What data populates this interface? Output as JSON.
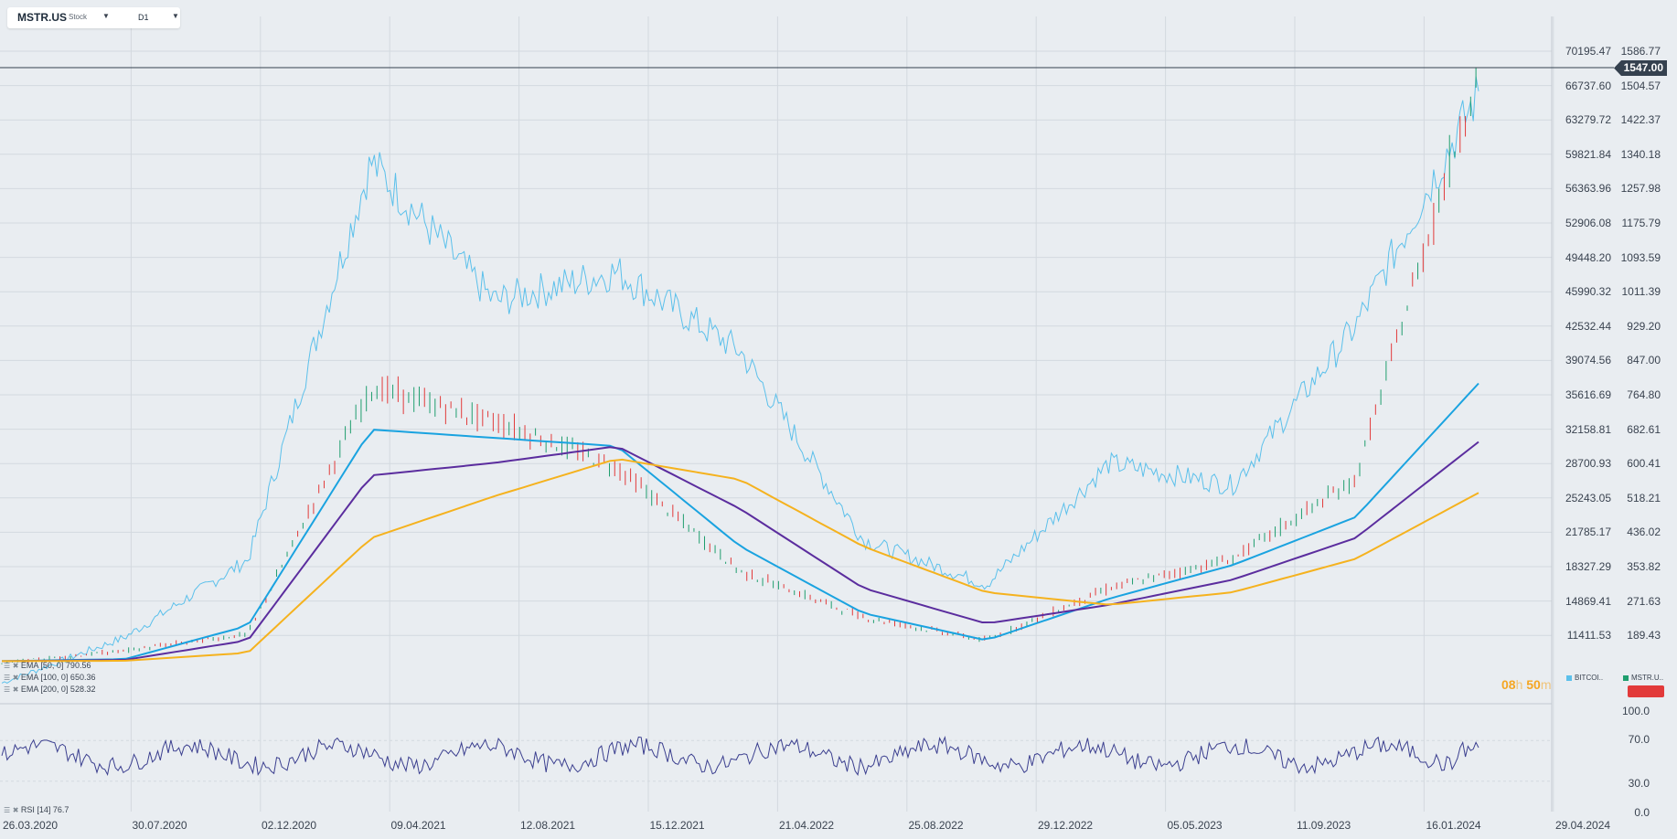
{
  "symbol": {
    "name": "MSTR.US",
    "type": "Stock",
    "timeframe": "D1"
  },
  "price_axis": [
    "1586.77",
    "1504.57",
    "1422.37",
    "1340.18",
    "1257.98",
    "1175.79",
    "1093.59",
    "1011.39",
    "929.20",
    "847.00",
    "764.80",
    "682.61",
    "600.41",
    "518.21",
    "436.02",
    "353.82",
    "271.63",
    "189.43"
  ],
  "btc_axis": [
    "70195.47",
    "66737.60",
    "63279.72",
    "59821.84",
    "56363.96",
    "52906.08",
    "49448.20",
    "45990.32",
    "42532.44",
    "39074.56",
    "35616.69",
    "32158.81",
    "28700.93",
    "25243.05",
    "21785.17",
    "18327.29",
    "14869.41",
    "11411.53"
  ],
  "current_price": "1547.00",
  "rsi_axis": [
    "100.0",
    "70.0",
    "30.0",
    "0.0"
  ],
  "dates": [
    "26.03.2020",
    "30.07.2020",
    "02.12.2020",
    "09.04.2021",
    "12.08.2021",
    "15.12.2021",
    "21.04.2022",
    "25.08.2022",
    "29.12.2022",
    "05.05.2023",
    "11.09.2023",
    "16.01.2024",
    "29.04.2024"
  ],
  "indicators": [
    {
      "label": "EMA  [50,  0]  790.56",
      "color": "#1aa3e0"
    },
    {
      "label": "EMA  [100,  0]  650.36",
      "color": "#5b2d9e"
    },
    {
      "label": "EMA  [200,  0]  528.32",
      "color": "#f5b21e"
    }
  ],
  "rsi_label": "RSI  [14]  76.7",
  "timer": {
    "hours": "08",
    "h_unit": "h",
    "minutes": "50",
    "m_unit": "m"
  },
  "legend": [
    {
      "label": "BITCOI..",
      "color": "#5bc0eb"
    },
    {
      "label": "MSTR.U..",
      "color": "#1f9e6e"
    }
  ],
  "colors": {
    "background": "#e9edf1",
    "grid": "#d3d9df",
    "btc_line": "#5bc0eb",
    "candle_up": "#1f9e6e",
    "candle_down": "#e23a3a",
    "ema50": "#1aa3e0",
    "ema100": "#5b2d9e",
    "ema200": "#f5b21e",
    "rsi_line": "#3b3f8f"
  },
  "chart_data": {
    "type": "line",
    "title": "MSTR.US",
    "timeframe": "D1",
    "x": [
      "26.03.2020",
      "30.07.2020",
      "02.12.2020",
      "09.04.2021",
      "12.08.2021",
      "15.12.2021",
      "21.04.2022",
      "25.08.2022",
      "29.12.2022",
      "05.05.2023",
      "11.09.2023",
      "16.01.2024",
      "29.04.2024"
    ],
    "series": [
      {
        "name": "BITCOI..",
        "axis": "right-outer",
        "values": [
          6600,
          11200,
          19000,
          59000,
          45000,
          48000,
          40000,
          21000,
          16500,
          28700,
          26500,
          42500,
          66000
        ]
      },
      {
        "name": "MSTR.U..",
        "axis": "right-inner",
        "values": [
          120,
          150,
          190,
          780,
          700,
          590,
          340,
          230,
          175,
          300,
          370,
          560,
          1547
        ]
      },
      {
        "name": "EMA  [50,  0]",
        "values": [
          125,
          130,
          210,
          680,
          660,
          640,
          400,
          240,
          175,
          275,
          355,
          470,
          790.56
        ]
      },
      {
        "name": "EMA  [100,  0]",
        "values": [
          125,
          128,
          175,
          570,
          600,
          640,
          490,
          300,
          215,
          260,
          320,
          420,
          650.36
        ]
      },
      {
        "name": "EMA  [200,  0]",
        "values": [
          125,
          126,
          145,
          420,
          520,
          610,
          560,
          400,
          290,
          260,
          290,
          370,
          528.32
        ]
      }
    ],
    "rsi": {
      "name": "RSI  [14]",
      "last": 76.7,
      "levels": [
        70.0,
        30.0
      ],
      "ylim": [
        0,
        100
      ]
    },
    "ylim_mstr": [
      189.43,
      1586.77
    ],
    "ylim_btc": [
      11411.53,
      70195.47
    ],
    "grid": true
  }
}
